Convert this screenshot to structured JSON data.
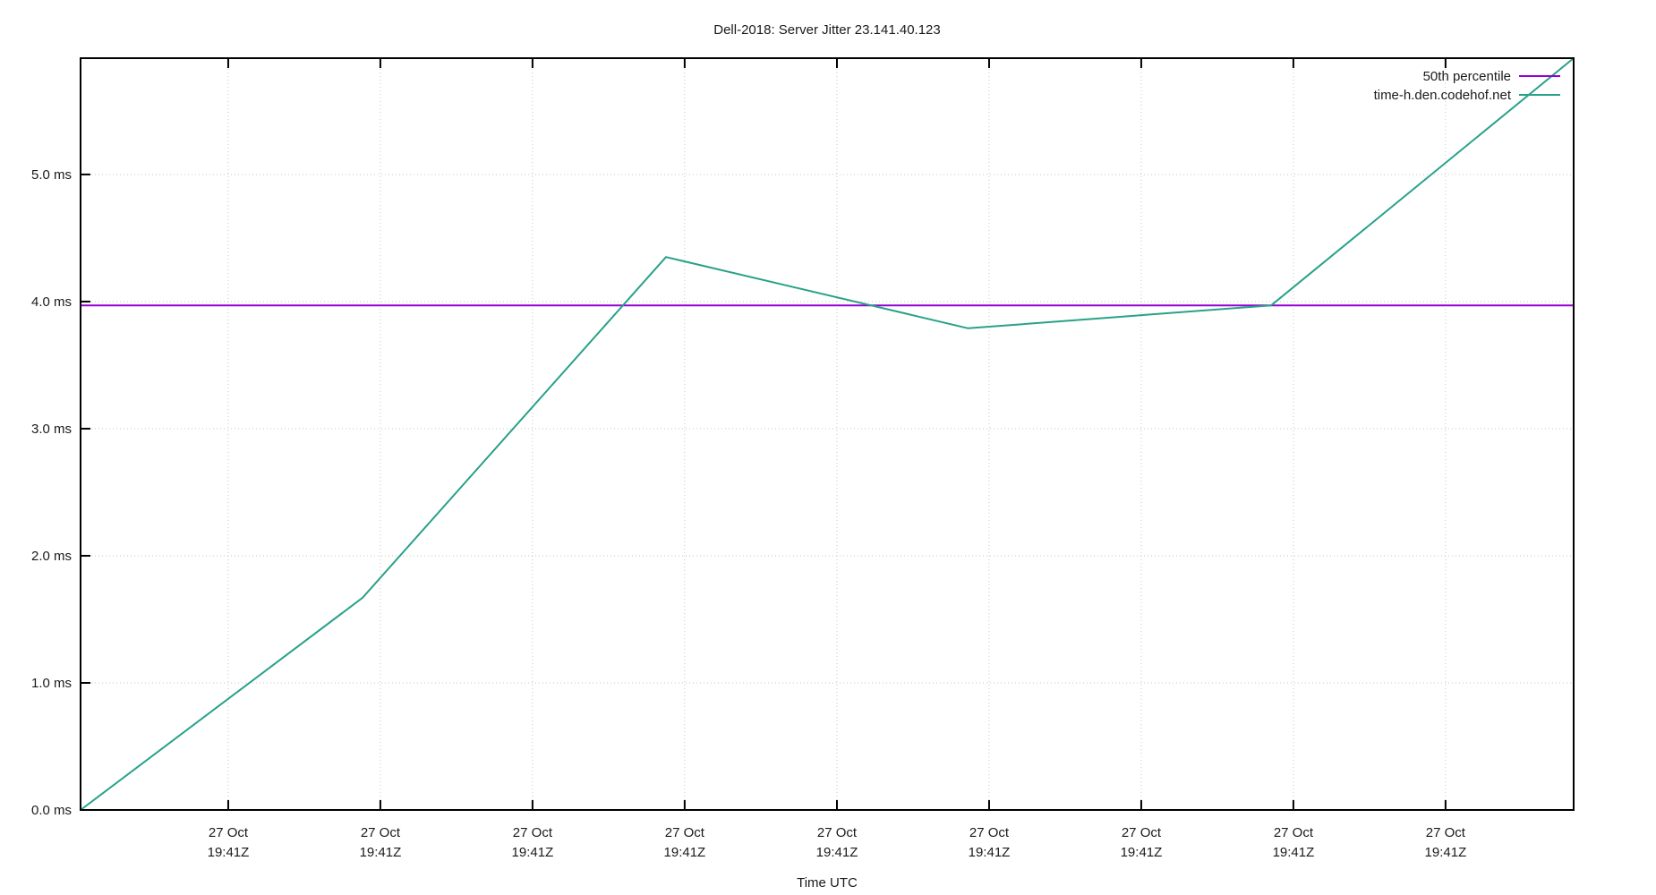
{
  "chart_data": {
    "type": "line",
    "title": "Dell-2018: Server Jitter 23.141.40.123",
    "xlabel": "Time UTC",
    "ylabel": "",
    "ylim": [
      0,
      5.915
    ],
    "grid": true,
    "legend_position": "top-right",
    "colors": {
      "background": "#ffffff",
      "border": "#000000",
      "grid": "#c6c6c6",
      "text": "#1a1a1a",
      "percentile_line": "#9400d3",
      "server_line": "#29a189"
    },
    "y_ticks": [
      {
        "value": 0.0,
        "label": "0.0 ms"
      },
      {
        "value": 1.0,
        "label": "1.0 ms"
      },
      {
        "value": 2.0,
        "label": "2.0 ms"
      },
      {
        "value": 3.0,
        "label": "3.0 ms"
      },
      {
        "value": 4.0,
        "label": "4.0 ms"
      },
      {
        "value": 5.0,
        "label": "5.0 ms"
      }
    ],
    "x_ticks": [
      {
        "frac": 0.0989,
        "date": "27 Oct",
        "time": "19:41Z"
      },
      {
        "frac": 0.2008,
        "date": "27 Oct",
        "time": "19:41Z"
      },
      {
        "frac": 0.3027,
        "date": "27 Oct",
        "time": "19:41Z"
      },
      {
        "frac": 0.4046,
        "date": "27 Oct",
        "time": "19:41Z"
      },
      {
        "frac": 0.5066,
        "date": "27 Oct",
        "time": "19:41Z"
      },
      {
        "frac": 0.6085,
        "date": "27 Oct",
        "time": "19:41Z"
      },
      {
        "frac": 0.7104,
        "date": "27 Oct",
        "time": "19:41Z"
      },
      {
        "frac": 0.8123,
        "date": "27 Oct",
        "time": "19:41Z"
      },
      {
        "frac": 0.9142,
        "date": "27 Oct",
        "time": "19:41Z"
      }
    ],
    "series": [
      {
        "name": "50th percentile",
        "color": "#9400d3",
        "style": "hline",
        "value_ms": 3.97
      },
      {
        "name": "time-h.den.codehof.net",
        "color": "#29a189",
        "style": "line",
        "points": [
          {
            "x_frac": 0.0,
            "ms": 0.0
          },
          {
            "x_frac": 0.1889,
            "ms": 1.67
          },
          {
            "x_frac": 0.3921,
            "ms": 4.35
          },
          {
            "x_frac": 0.5944,
            "ms": 3.79
          },
          {
            "x_frac": 0.7974,
            "ms": 3.97
          },
          {
            "x_frac": 1.0,
            "ms": 5.915
          }
        ]
      }
    ]
  }
}
